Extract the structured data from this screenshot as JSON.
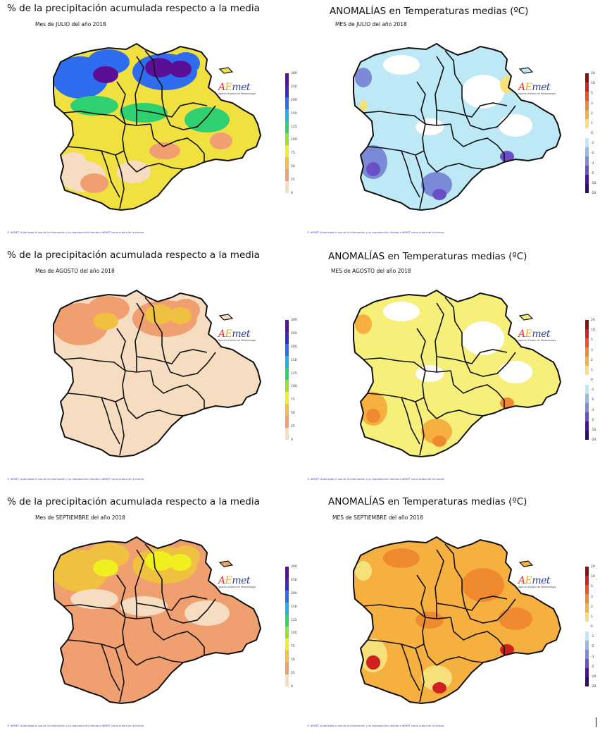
{
  "panels": [
    {
      "id": "p-jul",
      "title": "% de la precipitación acumulada respecto a la media",
      "subtitle": "Mes de JULIO del año 2018",
      "kind": "precip",
      "credit": "© AEMET. Autorizado el uso de la información y su reproducción citando a AEMET como autora de la misma."
    },
    {
      "id": "t-jul",
      "title": "ANOMALÍAS en Temperaturas medias (ºC)",
      "subtitle": "MES de JULIO del año 2018",
      "kind": "temp",
      "credit": "© AEMET. Autorizado el uso de la información y su reproducción citando a AEMET como autora de la misma."
    },
    {
      "id": "p-ago",
      "title": "% de la precipitación acumulada respecto a la media",
      "subtitle": "Mes de AGOSTO del año 2018",
      "kind": "precip",
      "credit": "© AEMET. Autorizado el uso de la información y su reproducción citando a AEMET como autora de la misma."
    },
    {
      "id": "t-ago",
      "title": "ANOMALÍAS en Temperaturas medias (ºC)",
      "subtitle": "MES de AGOSTO del año 2018",
      "kind": "temp",
      "credit": "© AEMET. Autorizado el uso de la información y su reproducción citando a AEMET como autora de la misma."
    },
    {
      "id": "p-sep",
      "title": "% de la precipitación acumulada respecto a la media",
      "subtitle": "Mes de SEPTIEMBRE del año 2018",
      "kind": "precip",
      "credit": "© AEMET. Autorizado el uso de la información y su reproducción citando a AEMET como autora de la misma."
    },
    {
      "id": "t-sep",
      "title": "ANOMALÍAS en Temperaturas medias (ºC)",
      "subtitle": "MES de SEPTIEMBRE del año 2018",
      "kind": "temp",
      "credit": "© AEMET. Autorizado el uso de la información y su reproducción citando a AEMET como autora de la misma."
    }
  ],
  "logo": {
    "word_a": "A",
    "word_e": "E",
    "word_rest": "met",
    "sub": "Agencia Estatal de Meteorología"
  },
  "legend_precip": {
    "ticks": [
      "300",
      "250",
      "200",
      "150",
      "125",
      "100",
      "75",
      "50",
      "25",
      "0"
    ],
    "colors": [
      "#5a0f96",
      "#3a28c8",
      "#2f6df0",
      "#1fb2e6",
      "#2fd070",
      "#9be030",
      "#f0f020",
      "#f0c040",
      "#f0a070",
      "#f6dcc0"
    ]
  },
  "legend_temp": {
    "ticks": [
      "20",
      "10",
      "5",
      "3",
      "2",
      "1",
      "0",
      "-1",
      "-2",
      "-3",
      "-5",
      "-10",
      "-20"
    ],
    "colors": [
      "#8a1010",
      "#d02020",
      "#f05020",
      "#f08a30",
      "#f6b040",
      "#f6e07a",
      "#ffffff",
      "#bde8f6",
      "#9ab8e6",
      "#7a8ad6",
      "#6a50c6",
      "#4a10a6",
      "#2a0a6a"
    ]
  },
  "fills": {
    "p-jul": {
      "base": "#f0e040",
      "patches": [
        {
          "c": "#2f6df0"
        },
        {
          "c": "#5a0f96"
        },
        {
          "c": "#2fd070"
        },
        {
          "c": "#f6dcc0"
        },
        {
          "c": "#f0a070"
        }
      ]
    },
    "t-jul": {
      "base": "#bde8f6",
      "patches": [
        {
          "c": "#ffffff"
        },
        {
          "c": "#7a8ad6"
        },
        {
          "c": "#6a50c6"
        },
        {
          "c": "#f6e07a"
        }
      ]
    },
    "p-ago": {
      "base": "#f6dcc0",
      "patches": [
        {
          "c": "#f0a070"
        },
        {
          "c": "#f0c040"
        }
      ]
    },
    "t-ago": {
      "base": "#f6f07a",
      "patches": [
        {
          "c": "#ffffff"
        },
        {
          "c": "#f6b040"
        },
        {
          "c": "#f08a30"
        }
      ]
    },
    "p-sep": {
      "base": "#f0a070",
      "patches": [
        {
          "c": "#f0c040"
        },
        {
          "c": "#f0f020"
        },
        {
          "c": "#f6dcc0"
        }
      ]
    },
    "t-sep": {
      "base": "#f6b040",
      "patches": [
        {
          "c": "#f08a30"
        },
        {
          "c": "#f6e07a"
        },
        {
          "c": "#d02020"
        }
      ]
    }
  }
}
